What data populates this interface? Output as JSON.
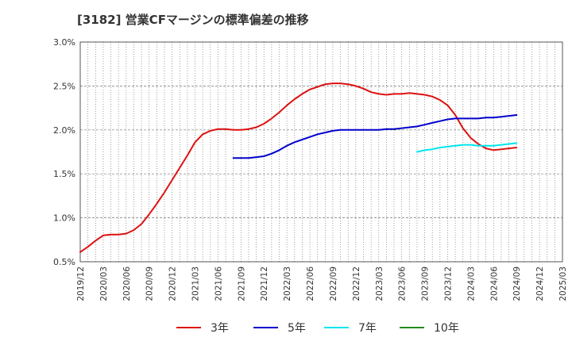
{
  "chart_data": {
    "type": "line",
    "title": "[3182]  営業CFマージンの標準偏差の推移",
    "xlabel": "",
    "ylabel": "",
    "x_ticks": [
      "2019/12",
      "2020/03",
      "2020/06",
      "2020/09",
      "2020/12",
      "2021/03",
      "2021/06",
      "2021/09",
      "2021/12",
      "2022/03",
      "2022/06",
      "2022/09",
      "2022/12",
      "2023/03",
      "2023/06",
      "2023/09",
      "2023/12",
      "2024/03",
      "2024/06",
      "2024/09",
      "2024/12",
      "2025/03"
    ],
    "y_ticks": [
      "0.5%",
      "1.0%",
      "1.5%",
      "2.0%",
      "2.5%",
      "3.0%"
    ],
    "ylim": [
      0.5,
      3.0
    ],
    "grid": true,
    "legend_position": "bottom",
    "series": [
      {
        "name": "3年",
        "color": "#dd1111",
        "points": [
          [
            "2019/12",
            0.61
          ],
          [
            "2020/01",
            0.67
          ],
          [
            "2020/02",
            0.74
          ],
          [
            "2020/03",
            0.8
          ],
          [
            "2020/04",
            0.81
          ],
          [
            "2020/05",
            0.81
          ],
          [
            "2020/06",
            0.82
          ],
          [
            "2020/07",
            0.86
          ],
          [
            "2020/08",
            0.93
          ],
          [
            "2020/09",
            1.04
          ],
          [
            "2020/10",
            1.16
          ],
          [
            "2020/11",
            1.29
          ],
          [
            "2020/12",
            1.43
          ],
          [
            "2020/01",
            null
          ],
          [
            "2021/01",
            1.57
          ],
          [
            "2021/02",
            1.71
          ],
          [
            "2021/03",
            1.86
          ],
          [
            "2021/04",
            1.95
          ],
          [
            "2021/05",
            1.99
          ],
          [
            "2021/06",
            2.01
          ],
          [
            "2021/07",
            2.01
          ],
          [
            "2021/08",
            2.0
          ],
          [
            "2021/09",
            2.0
          ],
          [
            "2021/10",
            2.01
          ],
          [
            "2021/11",
            2.03
          ],
          [
            "2021/12",
            2.07
          ],
          [
            "2022/01",
            2.13
          ],
          [
            "2022/02",
            2.2
          ],
          [
            "2022/03",
            2.28
          ],
          [
            "2022/04",
            2.35
          ],
          [
            "2022/05",
            2.41
          ],
          [
            "2022/06",
            2.46
          ],
          [
            "2022/07",
            2.49
          ],
          [
            "2022/08",
            2.52
          ],
          [
            "2022/09",
            2.53
          ],
          [
            "2022/10",
            2.53
          ],
          [
            "2022/11",
            2.52
          ],
          [
            "2022/12",
            2.5
          ],
          [
            "2023/01",
            2.47
          ],
          [
            "2023/02",
            2.43
          ],
          [
            "2023/03",
            2.41
          ],
          [
            "2023/04",
            2.4
          ],
          [
            "2023/05",
            2.41
          ],
          [
            "2023/06",
            2.41
          ],
          [
            "2023/07",
            2.42
          ],
          [
            "2023/08",
            2.41
          ],
          [
            "2023/09",
            2.4
          ],
          [
            "2023/10",
            2.38
          ],
          [
            "2023/11",
            2.34
          ],
          [
            "2023/12",
            2.28
          ],
          [
            "2024/01",
            2.17
          ],
          [
            "2024/02",
            2.02
          ],
          [
            "2024/03",
            1.91
          ],
          [
            "2024/04",
            1.84
          ],
          [
            "2024/05",
            1.79
          ],
          [
            "2024/06",
            1.77
          ],
          [
            "2024/07",
            1.78
          ],
          [
            "2024/08",
            1.79
          ],
          [
            "2024/09",
            1.8
          ]
        ]
      },
      {
        "name": "5年",
        "color": "#0000cc",
        "points": [
          [
            "2021/08",
            1.68
          ],
          [
            "2021/09",
            1.68
          ],
          [
            "2021/10",
            1.68
          ],
          [
            "2021/11",
            1.69
          ],
          [
            "2021/12",
            1.7
          ],
          [
            "2022/01",
            1.73
          ],
          [
            "2022/02",
            1.77
          ],
          [
            "2022/03",
            1.82
          ],
          [
            "2022/04",
            1.86
          ],
          [
            "2022/05",
            1.89
          ],
          [
            "2022/06",
            1.92
          ],
          [
            "2022/07",
            1.95
          ],
          [
            "2022/08",
            1.97
          ],
          [
            "2022/09",
            1.99
          ],
          [
            "2022/10",
            2.0
          ],
          [
            "2022/11",
            2.0
          ],
          [
            "2022/12",
            2.0
          ],
          [
            "2023/01",
            2.0
          ],
          [
            "2023/02",
            2.0
          ],
          [
            "2023/03",
            2.0
          ],
          [
            "2023/04",
            2.01
          ],
          [
            "2023/05",
            2.01
          ],
          [
            "2023/06",
            2.02
          ],
          [
            "2023/07",
            2.03
          ],
          [
            "2023/08",
            2.04
          ],
          [
            "2023/09",
            2.06
          ],
          [
            "2023/10",
            2.08
          ],
          [
            "2023/11",
            2.1
          ],
          [
            "2023/12",
            2.12
          ],
          [
            "2024/01",
            2.13
          ],
          [
            "2024/02",
            2.13
          ],
          [
            "2024/03",
            2.13
          ],
          [
            "2024/04",
            2.13
          ],
          [
            "2024/05",
            2.14
          ],
          [
            "2024/06",
            2.14
          ],
          [
            "2024/07",
            2.15
          ],
          [
            "2024/08",
            2.16
          ],
          [
            "2024/09",
            2.17
          ]
        ]
      },
      {
        "name": "7年",
        "color": "#00e5ee",
        "points": [
          [
            "2023/08",
            1.75
          ],
          [
            "2023/09",
            1.77
          ],
          [
            "2023/10",
            1.78
          ],
          [
            "2023/11",
            1.8
          ],
          [
            "2023/12",
            1.81
          ],
          [
            "2024/01",
            1.82
          ],
          [
            "2024/02",
            1.83
          ],
          [
            "2024/03",
            1.83
          ],
          [
            "2024/04",
            1.82
          ],
          [
            "2024/05",
            1.82
          ],
          [
            "2024/06",
            1.82
          ],
          [
            "2024/07",
            1.83
          ],
          [
            "2024/08",
            1.84
          ],
          [
            "2024/09",
            1.85
          ]
        ]
      },
      {
        "name": "10年",
        "color": "#228b22",
        "points": []
      }
    ]
  }
}
